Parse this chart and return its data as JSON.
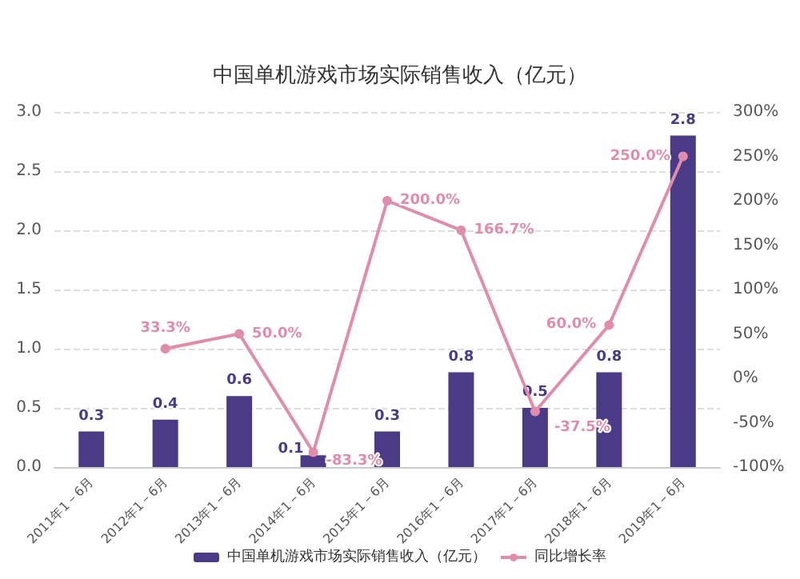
{
  "chart_data": {
    "type": "bar",
    "title": "中国单机游戏市场实际销售收入（亿元）",
    "categories": [
      "2011年1－6月",
      "2012年1－6月",
      "2013年1－6月",
      "2014年1－6月",
      "2015年1－6月",
      "2016年1－6月",
      "2017年1－6月",
      "2018年1－6月",
      "2019年1－6月"
    ],
    "series": [
      {
        "name": "中国单机游戏市场实际销售收入（亿元）",
        "type": "bar",
        "color": "#4b3b86",
        "values": [
          0.3,
          0.4,
          0.6,
          0.1,
          0.3,
          0.8,
          0.5,
          0.8,
          2.8
        ],
        "value_labels": [
          "0.3",
          "0.4",
          "0.6",
          "0.1",
          "0.3",
          "0.8",
          "0.5",
          "0.8",
          "2.8"
        ]
      },
      {
        "name": "同比增长率",
        "type": "line",
        "axis": "y2",
        "color": "#e08cab",
        "values": [
          null,
          33.3,
          50,
          -83.3,
          200,
          166.7,
          -37.5,
          60,
          250
        ],
        "value_labels": [
          null,
          "33.3%",
          "50.0%",
          "-83.3%",
          "200.0%",
          "166.7%",
          "-37.5%",
          "60.0%",
          "250.0%"
        ]
      }
    ],
    "ylim": [
      0,
      3
    ],
    "yticks": [
      {
        "value": 0,
        "label": "0.0"
      },
      {
        "value": 0.5,
        "label": "0.5"
      },
      {
        "value": 1,
        "label": "1.0"
      },
      {
        "value": 1.5,
        "label": "1.5"
      },
      {
        "value": 2,
        "label": "2.0"
      },
      {
        "value": 2.5,
        "label": "2.5"
      },
      {
        "value": 3,
        "label": "3.0"
      }
    ],
    "y2lim": [
      -100,
      300
    ],
    "y2ticks": [
      {
        "value": -100,
        "label": "-100%"
      },
      {
        "value": -50,
        "label": "-50%"
      },
      {
        "value": 0,
        "label": "0%"
      },
      {
        "value": 50,
        "label": "50%"
      },
      {
        "value": 100,
        "label": "100%"
      },
      {
        "value": 150,
        "label": "150%"
      },
      {
        "value": 200,
        "label": "200%"
      },
      {
        "value": 250,
        "label": "250%"
      },
      {
        "value": 300,
        "label": "300%"
      }
    ],
    "grid": "y",
    "legend": "bottom",
    "marker": "circle",
    "line_style": "solid"
  }
}
